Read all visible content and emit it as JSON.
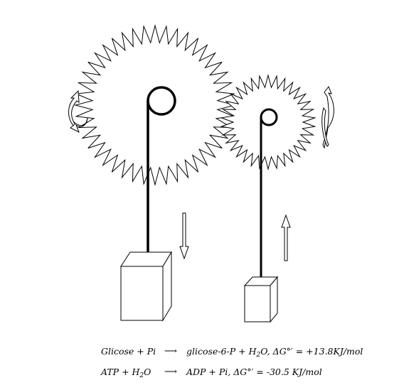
{
  "equations": [
    {
      "lhs": "Glicose + Pi",
      "rhs_before_sub": "glicose-6-P + H",
      "rhs_sub": "2",
      "rhs_after_sub": "O, ΔG°′ = +13.8KJ/mol"
    },
    {
      "lhs_before_sub": "ATP + H",
      "lhs_sub": "2",
      "lhs_after_sub": "O",
      "rhs": "ADP + Pi, ΔG°′ = -30.5 KJ/mol"
    }
  ],
  "icons": {
    "big_gear": "gear-icon",
    "small_gear": "gear-icon",
    "big_rotation": "rotation-arrows-icon",
    "small_rotation": "rotation-arrows-icon",
    "down_arrow": "arrow-down-icon",
    "up_arrow": "arrow-up-icon"
  },
  "colors": {
    "stroke": "#000000",
    "background": "#ffffff"
  }
}
